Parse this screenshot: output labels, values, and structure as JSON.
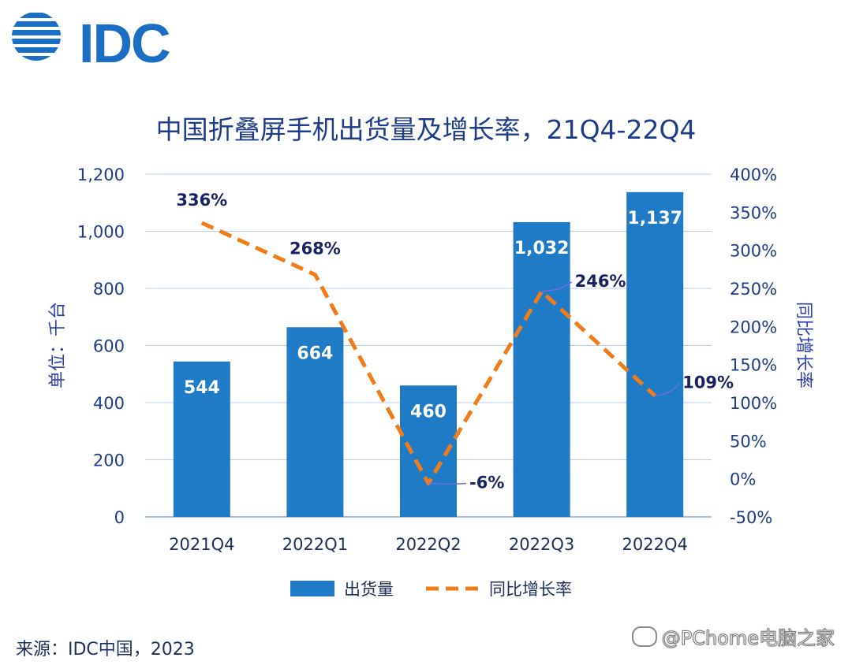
{
  "brand": {
    "logo_text": "IDC",
    "primary_color": "#1a6fc4",
    "bar_color": "#1f7bc6",
    "line_color": "#f07d1a",
    "title_color": "#1f3c8a"
  },
  "chart_data": {
    "type": "bar",
    "title": "中国折叠屏手机出货量及增长率，21Q4-22Q4",
    "categories": [
      "2021Q4",
      "2022Q1",
      "2022Q2",
      "2022Q3",
      "2022Q4"
    ],
    "series": [
      {
        "name": "出货量",
        "type": "bar",
        "axis": "left",
        "values": [
          544,
          664,
          460,
          1032,
          1137
        ],
        "labels": [
          "544",
          "664",
          "460",
          "1,032",
          "1,137"
        ]
      },
      {
        "name": "同比增长率",
        "type": "line",
        "style": "dashed",
        "axis": "right",
        "values": [
          336,
          268,
          -6,
          246,
          109
        ],
        "labels": [
          "336%",
          "268%",
          "-6%",
          "246%",
          "109%"
        ]
      }
    ],
    "ylabel": "单位：千台",
    "y2label": "同比增长率",
    "ylim": [
      0,
      1200
    ],
    "y2lim": [
      -50,
      400
    ],
    "yticks": [
      "0",
      "200",
      "400",
      "600",
      "800",
      "1,000",
      "1,200"
    ],
    "y2ticks": [
      "-50%",
      "0%",
      "50%",
      "100%",
      "150%",
      "200%",
      "250%",
      "300%",
      "350%",
      "400%"
    ],
    "grid": true,
    "legend_position": "bottom"
  },
  "source_text": "来源：IDC中国，2023",
  "watermark_text": "@PChome电脑之家"
}
